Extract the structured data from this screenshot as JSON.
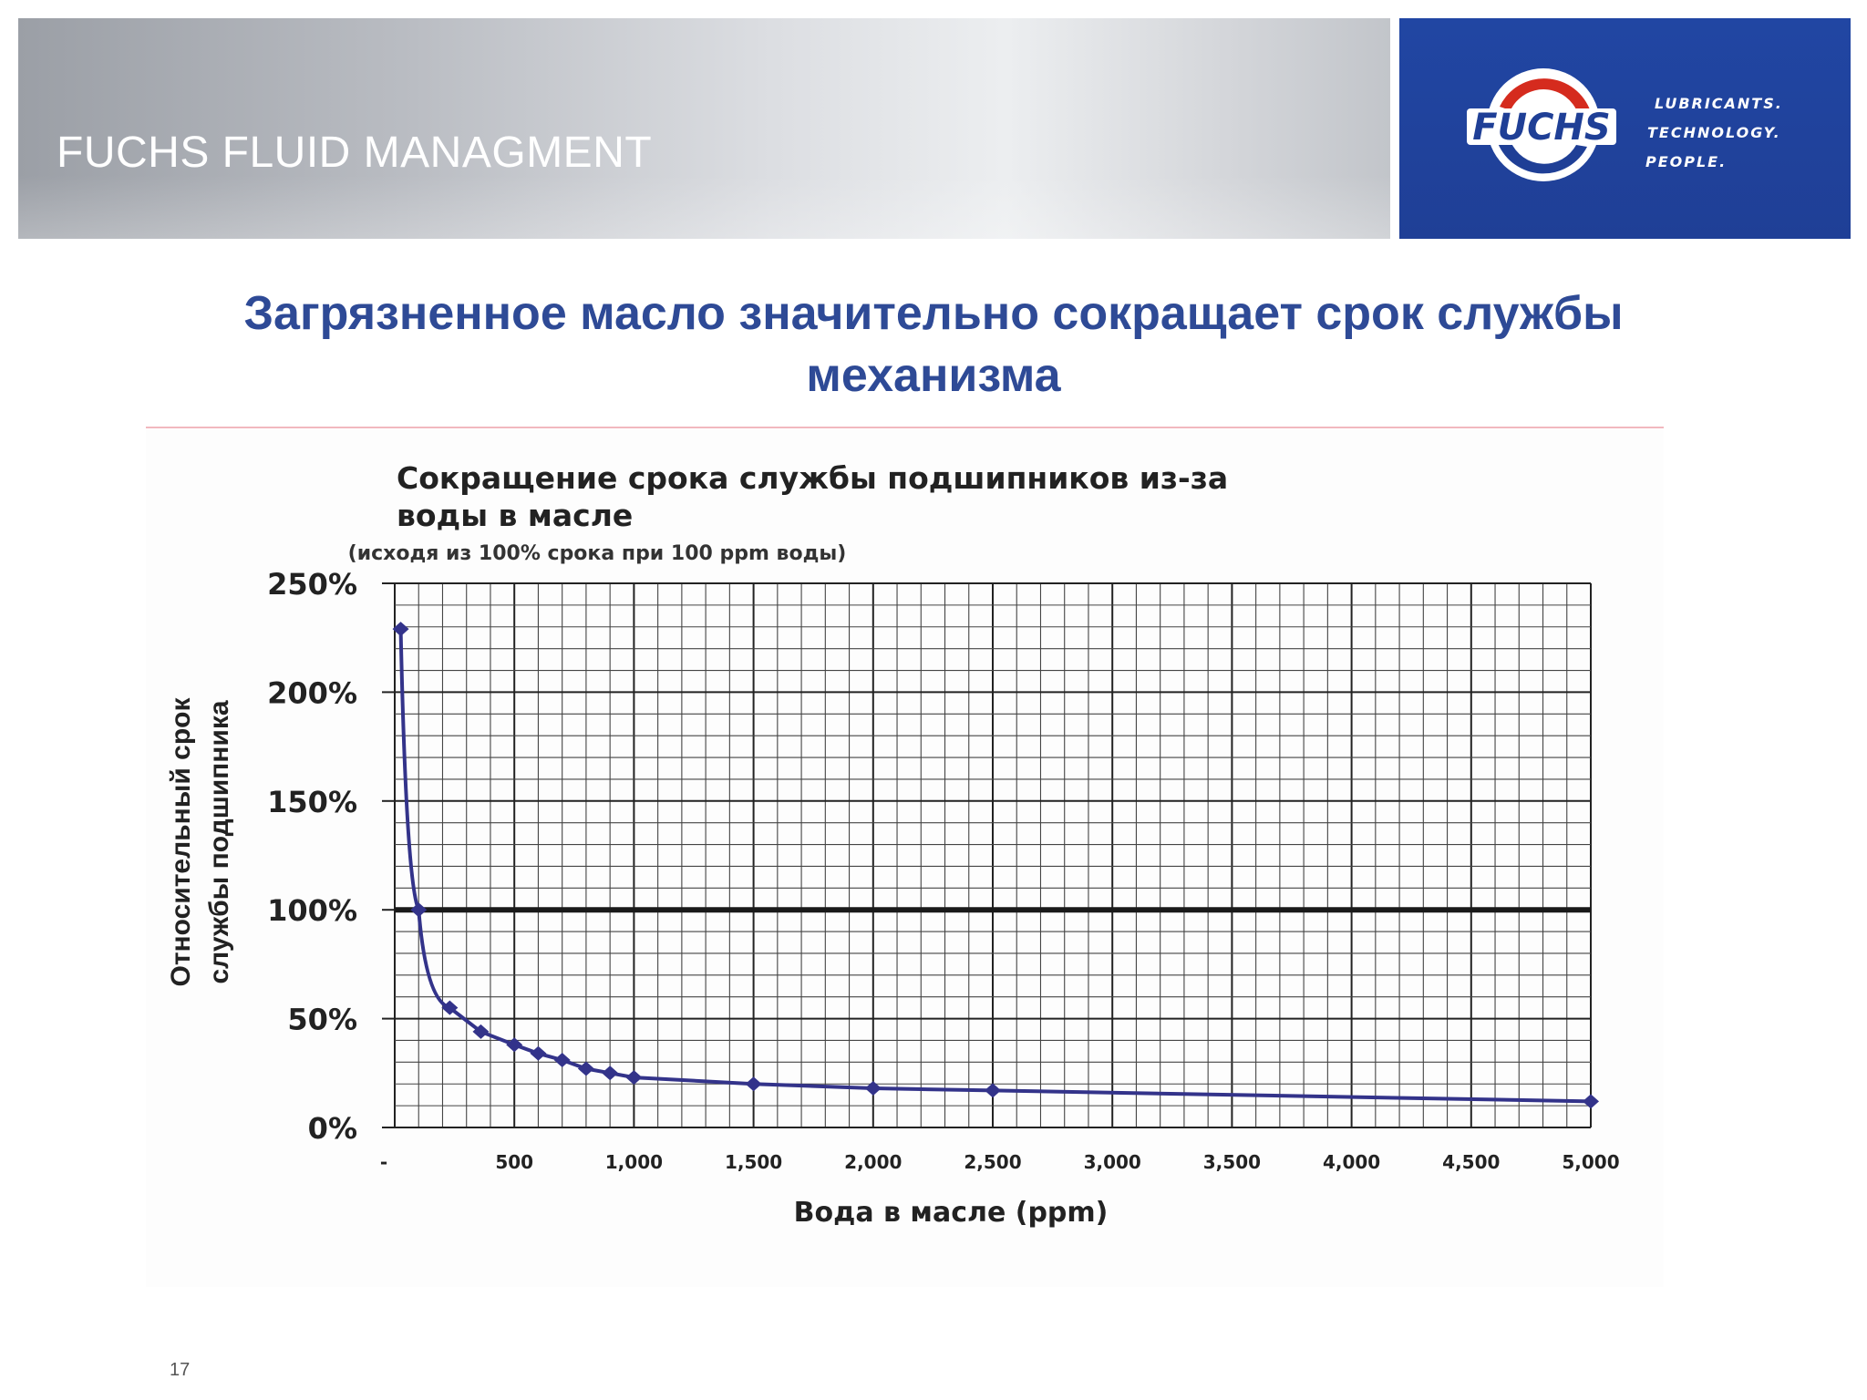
{
  "header": {
    "title": "FUCHS FLUID MANAGMENT"
  },
  "brand": {
    "logo_text": "FUCHS",
    "slogan": [
      "LUBRICANTS.",
      "TECHNOLOGY.",
      "PEOPLE."
    ],
    "colors": {
      "panel": "#2146a3",
      "logo_red": "#d52b1e",
      "logo_blue": "#1f3f96"
    }
  },
  "slide": {
    "title_line1": "Загрязненное масло значительно сокращает срок службы",
    "title_line2": "механизма",
    "page_number": "17"
  },
  "chart_data": {
    "type": "line",
    "title_line1": "Сокращение срока службы подшипников из-за",
    "title_line2": "воды в масле",
    "subtitle": "(исходя из 100% срока при 100 ppm воды)",
    "xlabel": "Вода в масле (ppm)",
    "ylabel_line1": "Относительный срок",
    "ylabel_line2": "службы подшипника",
    "xlim": [
      0,
      5000
    ],
    "ylim": [
      0,
      250
    ],
    "xticks": [
      0,
      500,
      1000,
      1500,
      2000,
      2500,
      3000,
      3500,
      4000,
      4500,
      5000
    ],
    "xtick_labels": [
      "-",
      "500",
      "1,000",
      "1,500",
      "2,000",
      "2,500",
      "3,000",
      "3,500",
      "4,000",
      "4,500",
      "5,000"
    ],
    "yticks": [
      0,
      50,
      100,
      150,
      200,
      250
    ],
    "ytick_labels": [
      "0%",
      "50%",
      "100%",
      "150%",
      "200%",
      "250%"
    ],
    "reference_line": 100,
    "grid": true,
    "series_color": "#33338a",
    "series": [
      {
        "x": [
          25,
          100,
          230,
          360,
          500,
          600,
          700,
          800,
          900,
          1000,
          1500,
          2000,
          2500,
          5000
        ],
        "y": [
          229,
          100,
          55,
          44,
          38,
          34,
          31,
          27,
          25,
          23,
          20,
          18,
          17,
          12
        ]
      }
    ]
  }
}
